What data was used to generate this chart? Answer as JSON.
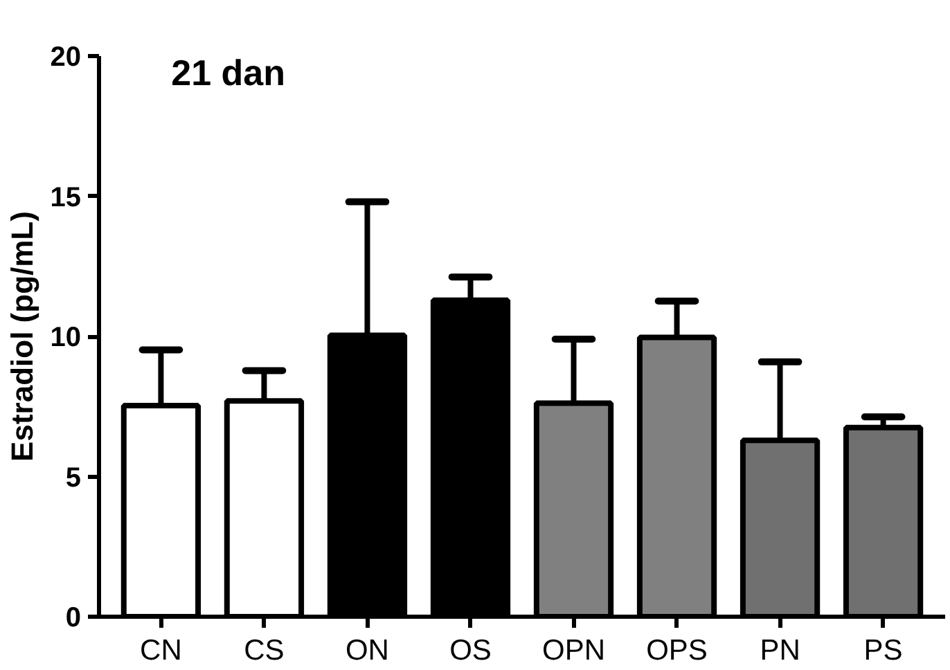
{
  "chart_data": {
    "type": "bar",
    "title": "21 dan",
    "ylabel": "Estradiol (pg/mL)",
    "categories": [
      "CN",
      "CS",
      "ON",
      "OS",
      "OPN",
      "OPS",
      "PN",
      "PS"
    ],
    "values": [
      7.53,
      7.7,
      10.04,
      11.29,
      7.62,
      9.96,
      6.29,
      6.75
    ],
    "errors": [
      [
        7.53,
        9.52
      ],
      [
        7.7,
        8.78
      ],
      [
        10.04,
        14.8
      ],
      [
        11.29,
        12.12
      ],
      [
        7.62,
        9.9
      ],
      [
        9.96,
        11.26
      ],
      [
        6.29,
        9.09
      ],
      [
        6.75,
        7.13
      ]
    ],
    "colors": [
      "#ffffff",
      "#ffffff",
      "#000000",
      "#000000",
      "#808080",
      "#808080",
      "#707070",
      "#707070"
    ],
    "ylim": [
      0,
      20
    ],
    "yticks": [
      0,
      5,
      10,
      15,
      20
    ],
    "grid": false
  }
}
